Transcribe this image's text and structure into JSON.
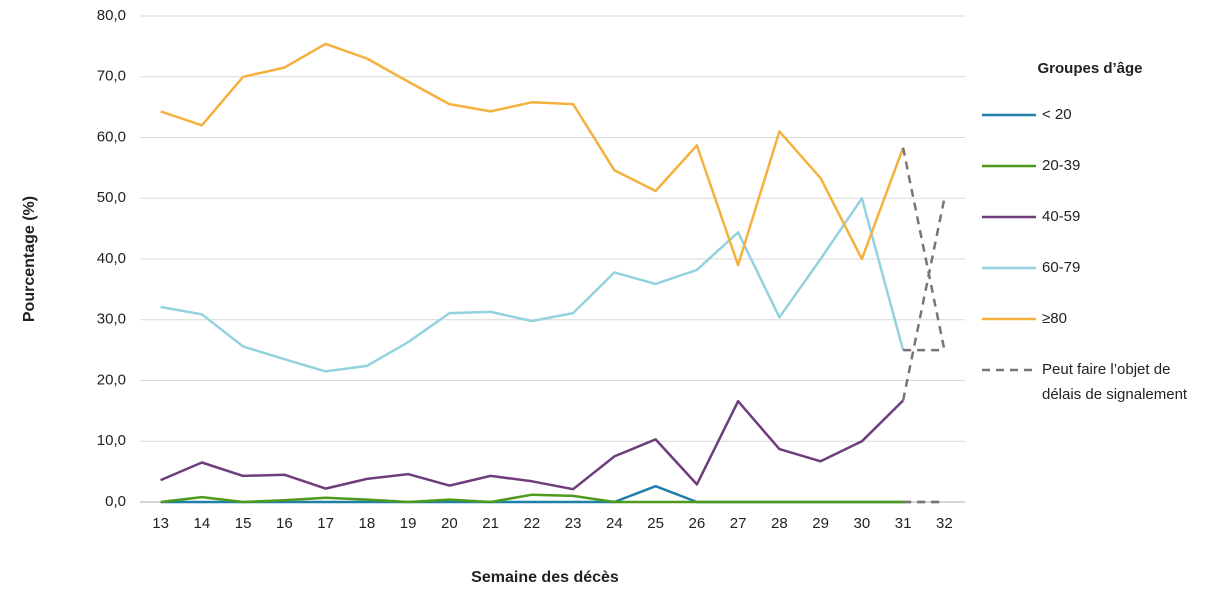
{
  "chart_data": {
    "type": "line",
    "x_label": "Semaine des décès",
    "y_label": "Pourcentage (%)",
    "legend_title": "Groupes d’âge",
    "legend": "right",
    "grid": true,
    "categories": [
      "13",
      "14",
      "15",
      "16",
      "17",
      "18",
      "19",
      "20",
      "21",
      "22",
      "23",
      "24",
      "25",
      "26",
      "27",
      "28",
      "29",
      "30",
      "31",
      "32"
    ],
    "ylim": [
      0,
      80
    ],
    "yticks": [
      {
        "value": 0,
        "label": "0,0"
      },
      {
        "value": 10,
        "label": "10,0"
      },
      {
        "value": 20,
        "label": "20,0"
      },
      {
        "value": 30,
        "label": "30,0"
      },
      {
        "value": 40,
        "label": "40,0"
      },
      {
        "value": 50,
        "label": "50,0"
      },
      {
        "value": 60,
        "label": "60,0"
      },
      {
        "value": 70,
        "label": "70,0"
      },
      {
        "value": 80,
        "label": "80,0"
      }
    ],
    "series": [
      {
        "name": "< 20",
        "color": "#1f7fa6",
        "values": [
          0,
          0,
          0,
          0,
          0,
          0,
          0,
          0,
          0,
          0,
          0,
          0,
          2.6,
          0,
          0,
          0,
          0,
          0,
          0,
          0
        ]
      },
      {
        "name": "20-39",
        "color": "#4e9a1c",
        "values": [
          0,
          0.8,
          0,
          0.3,
          0.7,
          0.4,
          0,
          0.4,
          0,
          1.2,
          1,
          0,
          0,
          0,
          0,
          0,
          0,
          0,
          0,
          0
        ]
      },
      {
        "name": "40-59",
        "color": "#6e3d7c",
        "values": [
          3.6,
          6.5,
          4.3,
          4.5,
          2.2,
          3.8,
          4.6,
          2.7,
          4.3,
          3.4,
          2.1,
          7.5,
          10.3,
          2.9,
          16.6,
          8.7,
          6.7,
          10,
          16.7,
          50
        ]
      },
      {
        "name": "60-79",
        "color": "#93d2de",
        "values": [
          32.1,
          30.9,
          25.6,
          23.5,
          21.5,
          22.4,
          26.3,
          31.1,
          31.3,
          29.8,
          31.1,
          37.8,
          35.9,
          38.2,
          44.4,
          30.4,
          40,
          50,
          25,
          25
        ]
      },
      {
        "name": "≥80",
        "color": "#f5b13d",
        "values": [
          64.3,
          62,
          70,
          71.5,
          75.4,
          73,
          69.2,
          65.5,
          64.3,
          65.8,
          65.5,
          54.6,
          51.2,
          58.7,
          39,
          61,
          53.3,
          40,
          58.3,
          25
        ]
      }
    ],
    "provisional": {
      "label_lines": [
        "Peut faire l’objet de",
        "délais de signalement"
      ],
      "color": "#767676",
      "from": "31"
    }
  }
}
